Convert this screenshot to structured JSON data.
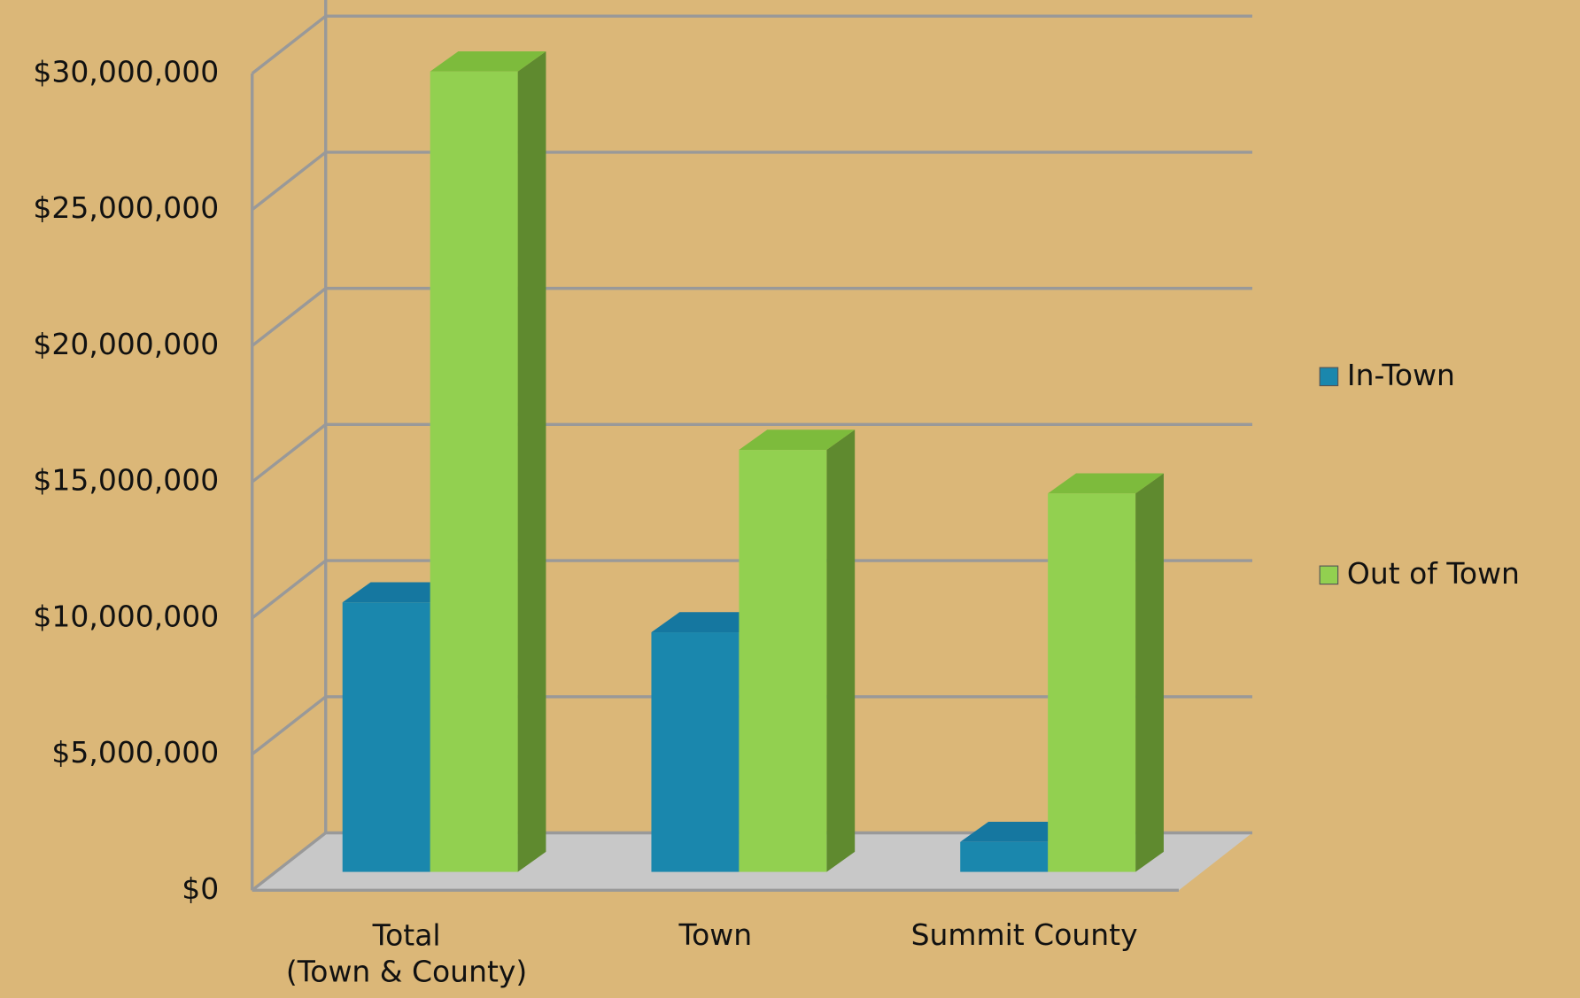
{
  "chart_data": {
    "type": "bar3d",
    "categories": [
      "Total\n(Town & County)",
      "Town",
      "Summit County"
    ],
    "series": [
      {
        "name": "In-Town",
        "color": "#1a87ad",
        "values": [
          9900000,
          8800000,
          1100000
        ]
      },
      {
        "name": "Out of Town",
        "color": "#92d050",
        "values": [
          29400000,
          15500000,
          13900000
        ]
      }
    ],
    "ylim": [
      0,
      30000000
    ],
    "yticks": [
      {
        "value": 0,
        "label": "$0"
      },
      {
        "value": 5000000,
        "label": "$5,000,000"
      },
      {
        "value": 10000000,
        "label": "$10,000,000"
      },
      {
        "value": 15000000,
        "label": "$15,000,000"
      },
      {
        "value": 20000000,
        "label": "$20,000,000"
      },
      {
        "value": 25000000,
        "label": "$25,000,000"
      },
      {
        "value": 30000000,
        "label": "$30,000,000"
      }
    ],
    "grid": true,
    "legend": "right"
  }
}
